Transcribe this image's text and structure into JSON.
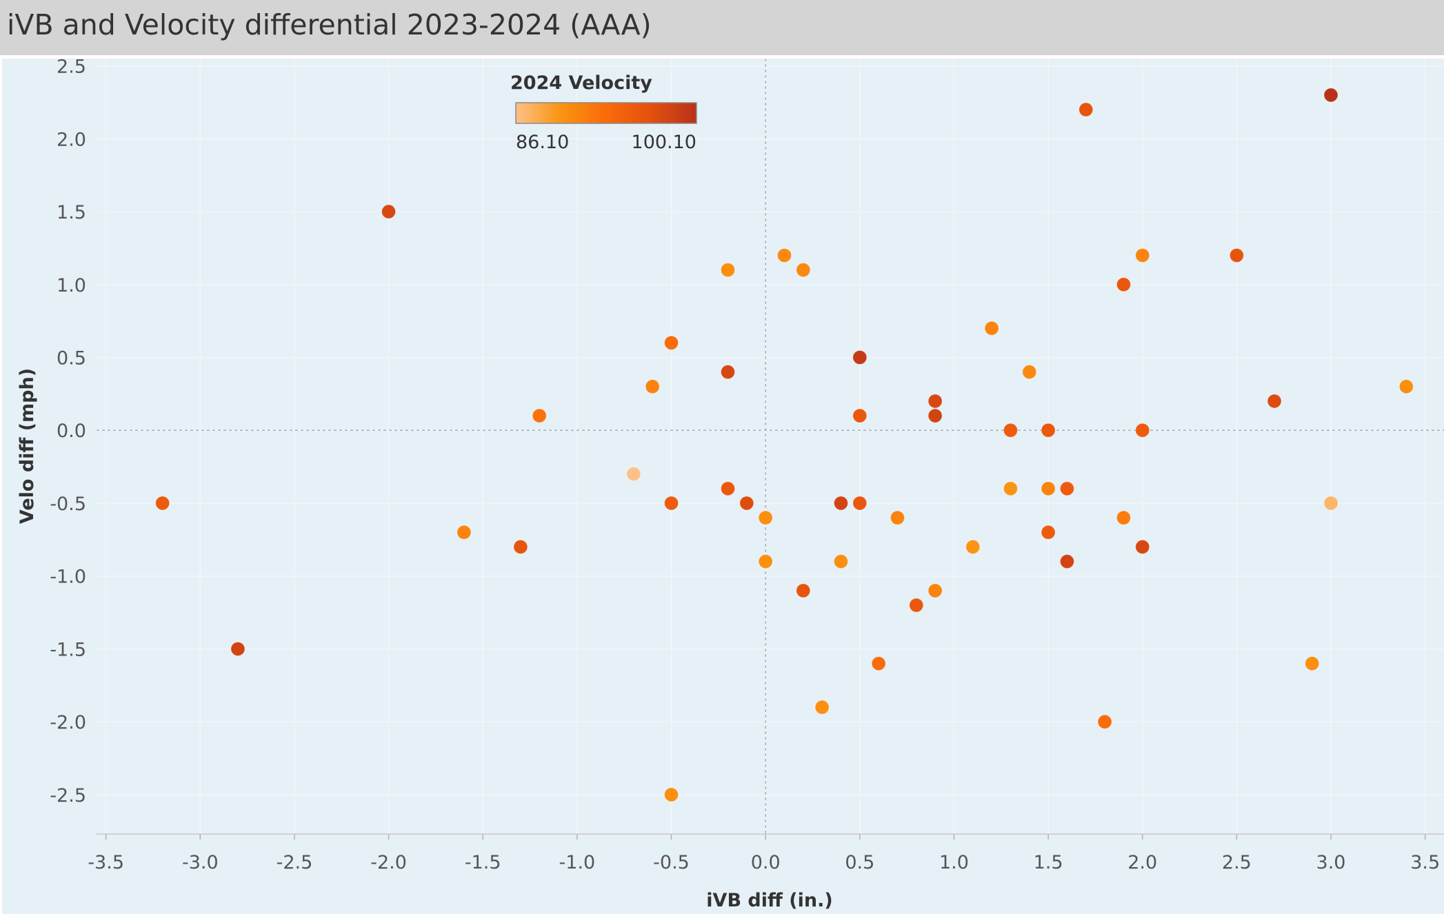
{
  "title": "iVB and Velocity differential 2023-2024 (AAA)",
  "chart_data": {
    "type": "scatter",
    "xlabel": "iVB diff (in.)",
    "ylabel": "Velo diff (mph)",
    "xlim": [
      -3.55,
      3.6
    ],
    "ylim": [
      -2.77,
      2.55
    ],
    "x_ticks": [
      "-3.5",
      "-3.0",
      "-2.5",
      "-2.0",
      "-1.5",
      "-1.0",
      "-0.5",
      "0.0",
      "0.5",
      "1.0",
      "1.5",
      "2.0",
      "2.5",
      "3.0",
      "3.5"
    ],
    "y_ticks": [
      "2.5",
      "2.0",
      "1.5",
      "1.0",
      "0.5",
      "0.0",
      "-0.5",
      "-1.0",
      "-1.5",
      "-2.0",
      "-2.5"
    ],
    "grid": true,
    "reference_lines": {
      "x": 0,
      "y": 0
    },
    "color_legend": {
      "title": "2024 Velocity",
      "min_label": "86.10",
      "max_label": "100.10",
      "min": 86.1,
      "max": 100.1,
      "gradient": [
        "#fdc088",
        "#fa9411",
        "#f96b0a",
        "#e2500f",
        "#b8321a"
      ],
      "placement": "top-center"
    },
    "points": [
      {
        "x": -3.2,
        "y": -0.5,
        "velocity": 95.0
      },
      {
        "x": -2.8,
        "y": -1.5,
        "velocity": 98.0
      },
      {
        "x": -2.0,
        "y": 1.5,
        "velocity": 97.5
      },
      {
        "x": -1.6,
        "y": -0.7,
        "velocity": 91.0
      },
      {
        "x": -1.3,
        "y": -0.8,
        "velocity": 96.0
      },
      {
        "x": -1.2,
        "y": 0.1,
        "velocity": 92.5
      },
      {
        "x": -0.7,
        "y": -0.3,
        "velocity": 86.1
      },
      {
        "x": -0.6,
        "y": 0.3,
        "velocity": 91.0
      },
      {
        "x": -0.5,
        "y": 0.6,
        "velocity": 93.0
      },
      {
        "x": -0.5,
        "y": -0.5,
        "velocity": 95.0
      },
      {
        "x": -0.5,
        "y": -2.5,
        "velocity": 90.0
      },
      {
        "x": -0.2,
        "y": 1.1,
        "velocity": 90.0
      },
      {
        "x": -0.2,
        "y": 0.4,
        "velocity": 97.5
      },
      {
        "x": -0.2,
        "y": -0.4,
        "velocity": 95.5
      },
      {
        "x": -0.1,
        "y": -0.5,
        "velocity": 97.0
      },
      {
        "x": 0.0,
        "y": -0.6,
        "velocity": 90.0
      },
      {
        "x": 0.0,
        "y": -0.9,
        "velocity": 90.0
      },
      {
        "x": 0.1,
        "y": 1.2,
        "velocity": 90.5
      },
      {
        "x": 0.2,
        "y": 1.1,
        "velocity": 90.5
      },
      {
        "x": 0.2,
        "y": -1.1,
        "velocity": 96.0
      },
      {
        "x": 0.3,
        "y": -1.9,
        "velocity": 90.0
      },
      {
        "x": 0.4,
        "y": -0.5,
        "velocity": 98.0
      },
      {
        "x": 0.4,
        "y": -0.9,
        "velocity": 90.0
      },
      {
        "x": 0.5,
        "y": 0.5,
        "velocity": 99.0
      },
      {
        "x": 0.5,
        "y": 0.1,
        "velocity": 95.5
      },
      {
        "x": 0.5,
        "y": -0.5,
        "velocity": 95.5
      },
      {
        "x": 0.6,
        "y": -1.6,
        "velocity": 93.0
      },
      {
        "x": 0.7,
        "y": -0.6,
        "velocity": 91.0
      },
      {
        "x": 0.8,
        "y": -1.2,
        "velocity": 95.5
      },
      {
        "x": 0.9,
        "y": 0.2,
        "velocity": 97.5
      },
      {
        "x": 0.9,
        "y": 0.1,
        "velocity": 98.0
      },
      {
        "x": 0.9,
        "y": -1.1,
        "velocity": 91.0
      },
      {
        "x": 1.1,
        "y": -0.8,
        "velocity": 89.5
      },
      {
        "x": 1.2,
        "y": 0.7,
        "velocity": 91.0
      },
      {
        "x": 1.3,
        "y": 0.0,
        "velocity": 95.0
      },
      {
        "x": 1.3,
        "y": -0.4,
        "velocity": 89.5
      },
      {
        "x": 1.4,
        "y": 0.4,
        "velocity": 90.5
      },
      {
        "x": 1.5,
        "y": 0.0,
        "velocity": 95.5
      },
      {
        "x": 1.5,
        "y": -0.4,
        "velocity": 91.0
      },
      {
        "x": 1.5,
        "y": -0.7,
        "velocity": 95.0
      },
      {
        "x": 1.6,
        "y": -0.4,
        "velocity": 95.0
      },
      {
        "x": 1.6,
        "y": -0.9,
        "velocity": 98.0
      },
      {
        "x": 1.7,
        "y": 2.2,
        "velocity": 96.0
      },
      {
        "x": 1.8,
        "y": -2.0,
        "velocity": 93.0
      },
      {
        "x": 1.9,
        "y": 1.0,
        "velocity": 95.5
      },
      {
        "x": 1.9,
        "y": -0.6,
        "velocity": 91.5
      },
      {
        "x": 2.0,
        "y": 1.2,
        "velocity": 91.0
      },
      {
        "x": 2.0,
        "y": 0.0,
        "velocity": 95.0
      },
      {
        "x": 2.0,
        "y": -0.8,
        "velocity": 97.5
      },
      {
        "x": 2.5,
        "y": 1.2,
        "velocity": 96.0
      },
      {
        "x": 2.7,
        "y": 0.2,
        "velocity": 97.0
      },
      {
        "x": 2.9,
        "y": -1.6,
        "velocity": 90.0
      },
      {
        "x": 3.0,
        "y": 2.3,
        "velocity": 100.1
      },
      {
        "x": 3.0,
        "y": -0.5,
        "velocity": 87.0
      },
      {
        "x": 3.4,
        "y": 0.3,
        "velocity": 90.0
      }
    ]
  }
}
